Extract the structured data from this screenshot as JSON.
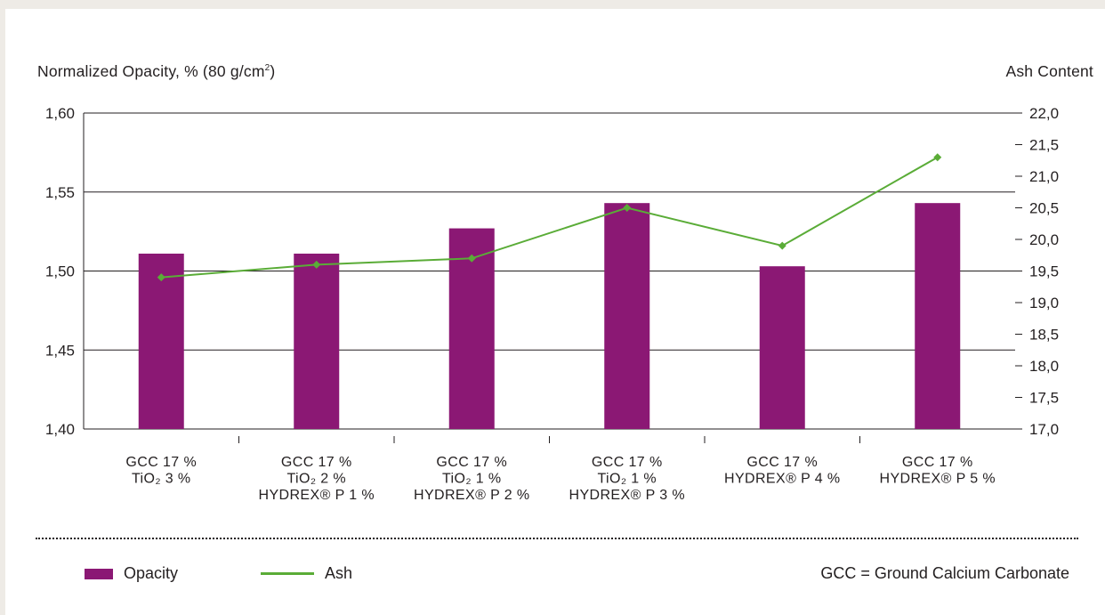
{
  "chart_data": {
    "type": "bar",
    "categories": [
      [
        "GCC 17 %",
        "TiO₂ 3 %"
      ],
      [
        "GCC 17 %",
        "TiO₂ 2 %",
        "HYDREX® P 1 %"
      ],
      [
        "GCC 17 %",
        "TiO₂ 1 %",
        "HYDREX® P 2 %"
      ],
      [
        "GCC 17 %",
        "TiO₂ 1 %",
        "HYDREX® P 3 %"
      ],
      [
        "GCC 17 %",
        "HYDREX® P 4 %"
      ],
      [
        "GCC 17 %",
        "HYDREX® P 5 %"
      ]
    ],
    "series": [
      {
        "name": "Opacity",
        "type": "bar",
        "axis": "left",
        "color": "#8b1874",
        "values": [
          1.511,
          1.511,
          1.527,
          1.543,
          1.503,
          1.543
        ]
      },
      {
        "name": "Ash",
        "type": "line",
        "axis": "right",
        "color": "#5aac37",
        "marker": "diamond",
        "values": [
          19.4,
          19.6,
          19.7,
          20.5,
          19.9,
          21.3
        ]
      }
    ],
    "ylabel_left": "Normalized Opacity, % (80 g/cm",
    "ylabel_left_sup": "2",
    "ylabel_left_suffix": ")",
    "ylabel_right": "Ash Content",
    "ylim_left": [
      1.4,
      1.6
    ],
    "ylim_right": [
      17.0,
      22.0
    ],
    "yticks_left": [
      "1,40",
      "1,45",
      "1,50",
      "1,55",
      "1,60"
    ],
    "yticks_right": [
      "17,0",
      "17,5",
      "18,0",
      "18,5",
      "19,0",
      "19,5",
      "20,0",
      "20,5",
      "21,0",
      "21,5",
      "22,0"
    ],
    "grid": true,
    "legend_position": "bottom-left"
  },
  "legend": {
    "opacity_label": "Opacity",
    "ash_label": "Ash"
  },
  "footnote": "GCC = Ground Calcium Carbonate"
}
